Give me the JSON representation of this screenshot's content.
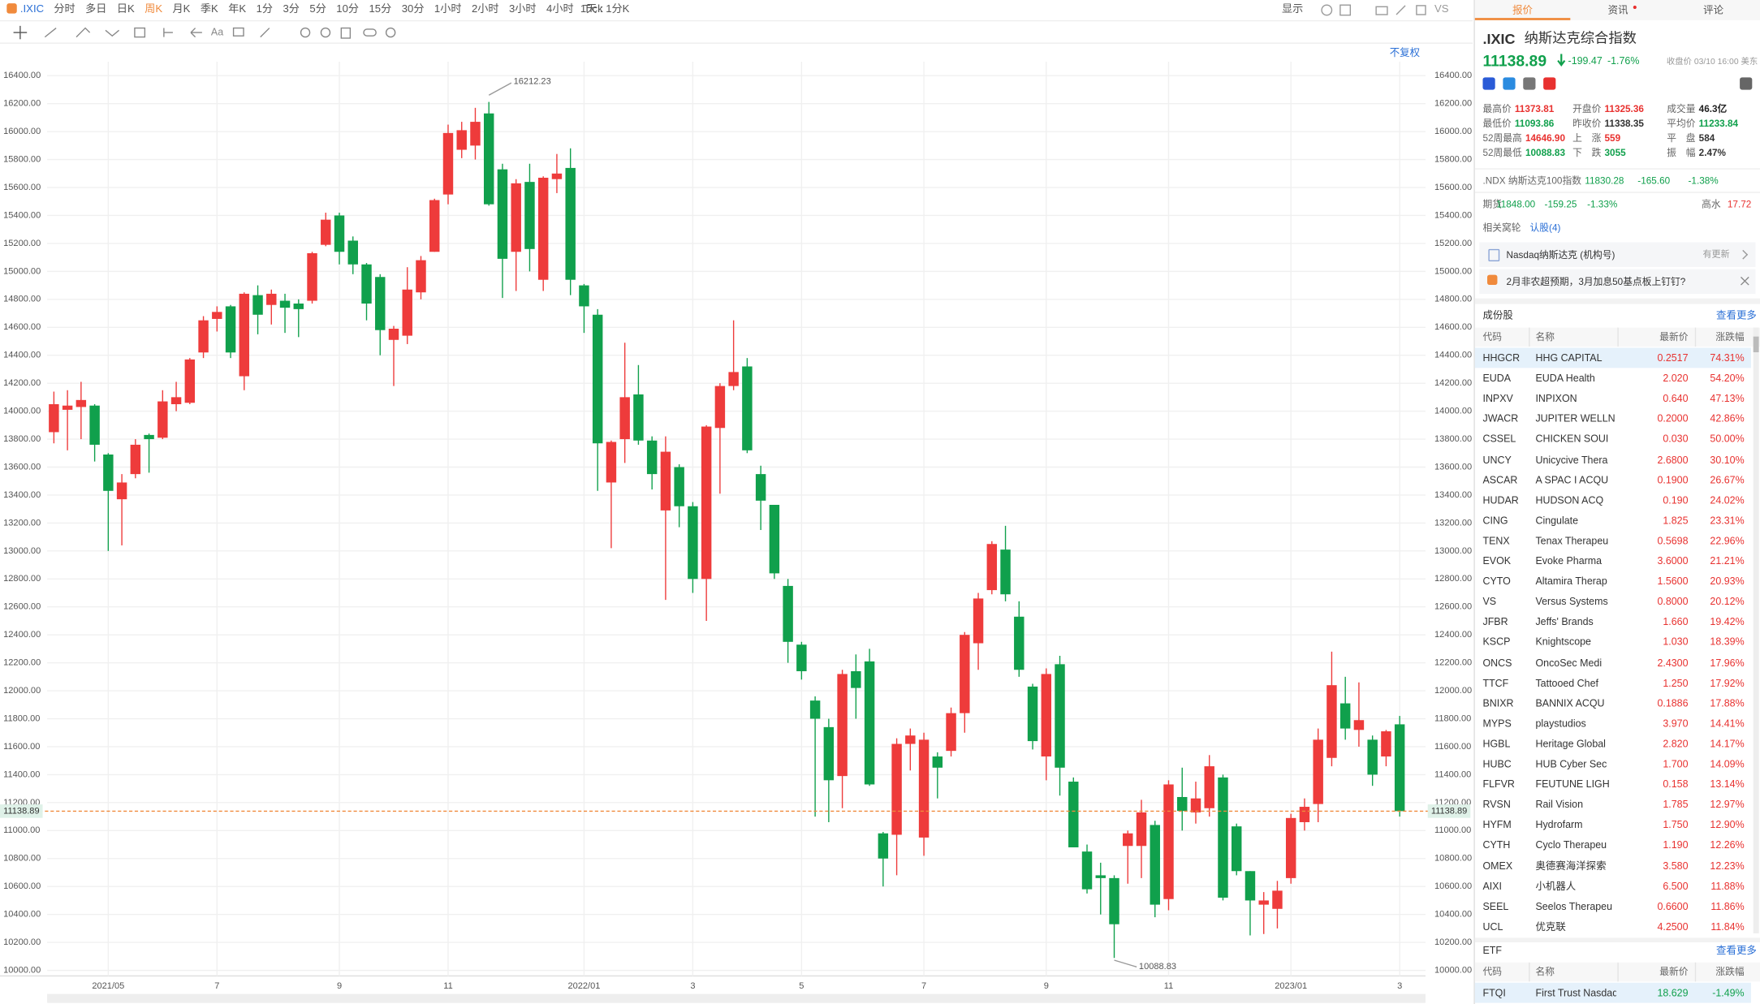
{
  "toolbar": {
    "symbol": ".IXIC",
    "periods": [
      "分时",
      "多日",
      "日K",
      "周K",
      "月K",
      "季K",
      "年K",
      "1分",
      "3分",
      "5分",
      "10分",
      "15分",
      "30分",
      "1小时",
      "2小时",
      "3小时",
      "4小时",
      "Tick"
    ],
    "active_period": 3,
    "kline_setting": "1天 : 1分K",
    "display": "显示",
    "vs": "VS",
    "adjust": "不复权"
  },
  "chart_data": {
    "type": "candlestick",
    "categories": [
      null,
      null,
      null,
      null,
      "2021/05",
      null,
      null,
      null,
      null,
      null,
      null,
      null,
      "7",
      null,
      null,
      null,
      null,
      null,
      null,
      null,
      null,
      "9",
      null,
      null,
      null,
      null,
      null,
      null,
      null,
      "11",
      null,
      null,
      null,
      null,
      null,
      null,
      null,
      null,
      null,
      "2022/01",
      null,
      null,
      null,
      null,
      null,
      null,
      null,
      "3",
      null,
      null,
      null,
      null,
      null,
      null,
      null,
      "5",
      null,
      null,
      null,
      null,
      null,
      null,
      null,
      null,
      "7",
      null,
      null,
      null,
      null,
      null,
      null,
      null,
      null,
      "9",
      null,
      null,
      null,
      null,
      null,
      null,
      null,
      null,
      "11",
      null,
      null,
      null,
      null,
      null,
      null,
      null,
      null,
      "2023/01",
      null,
      null,
      null,
      null,
      null,
      null,
      null,
      "3"
    ],
    "open": [
      13850,
      14010,
      14030,
      14040,
      13690,
      13370,
      13550,
      13830,
      13810,
      14050,
      14060,
      14420,
      14660,
      14750,
      14250,
      14830,
      14760,
      14790,
      14770,
      14790,
      15190,
      15400,
      15220,
      15050,
      14960,
      14510,
      14540,
      14850,
      15140,
      15550,
      15870,
      15900,
      16130,
      15730,
      15140,
      15640,
      14940,
      15660,
      15740,
      14900,
      14690,
      13490,
      13800,
      14120,
      13790,
      13290,
      13600,
      13320,
      12800,
      13880,
      14180,
      14320,
      13550,
      13330,
      12750,
      12330,
      11930,
      11740,
      11390,
      12140,
      12210,
      10980,
      10970,
      11620,
      10950,
      11530,
      11570,
      11840,
      12340,
      12720,
      13010,
      12530,
      12030,
      11530,
      12190,
      11350,
      10850,
      10680,
      10660,
      10890,
      10890,
      11040,
      10510,
      11240,
      11130,
      11160,
      11380,
      11030,
      10710,
      10470,
      10440,
      10660,
      11060,
      11190,
      11520,
      11910,
      11720,
      11650,
      11530,
      11760
    ],
    "high": [
      14140,
      14150,
      14210,
      14050,
      13700,
      13550,
      13800,
      13840,
      14150,
      14210,
      14380,
      14680,
      14750,
      14760,
      14850,
      14900,
      14870,
      14840,
      14800,
      15140,
      15420,
      15420,
      15250,
      15060,
      14980,
      14610,
      15030,
      15110,
      15520,
      16050,
      16070,
      16170,
      16212.23,
      15770,
      15660,
      15770,
      15680,
      15840,
      15880,
      14910,
      14730,
      13790,
      14490,
      14330,
      13820,
      13820,
      13620,
      13350,
      13900,
      14200,
      14650,
      14380,
      13610,
      13330,
      12800,
      12350,
      11960,
      11800,
      12150,
      12260,
      12300,
      10990,
      11660,
      11730,
      11700,
      11560,
      11880,
      12420,
      12700,
      13070,
      13180,
      12640,
      12050,
      12160,
      12250,
      11380,
      10900,
      10770,
      10680,
      11000,
      11220,
      11070,
      11360,
      11450,
      11350,
      11540,
      11400,
      11050,
      10710,
      10560,
      10640,
      11120,
      11230,
      11730,
      12280,
      12100,
      12060,
      11680,
      11720,
      11820
    ],
    "low": [
      13770,
      13720,
      13800,
      13640,
      13000,
      13040,
      13520,
      13560,
      13800,
      14000,
      14050,
      14380,
      14570,
      14380,
      14150,
      14550,
      14620,
      14560,
      14530,
      14770,
      15180,
      15050,
      14980,
      14650,
      14400,
      14180,
      14480,
      14800,
      15140,
      15480,
      15810,
      15800,
      15470,
      14810,
      14860,
      15000,
      14860,
      15560,
      14830,
      14560,
      13430,
      13020,
      13630,
      13760,
      13440,
      12650,
      13170,
      12700,
      12500,
      13410,
      14150,
      13700,
      13150,
      12800,
      12200,
      12080,
      11100,
      11060,
      11160,
      11800,
      11320,
      10600,
      10680,
      11430,
      10820,
      11230,
      11530,
      11700,
      12150,
      12690,
      12640,
      12100,
      11580,
      11360,
      11250,
      10880,
      10550,
      10400,
      10088.83,
      10620,
      10660,
      10380,
      10430,
      11000,
      11050,
      11100,
      10500,
      10680,
      10250,
      10260,
      10300,
      10620,
      11000,
      11060,
      11460,
      11650,
      11600,
      11320,
      11460,
      11100
    ],
    "close": [
      14050,
      14040,
      14080,
      13760,
      13430,
      13490,
      13760,
      13800,
      14070,
      14100,
      14370,
      14650,
      14710,
      14420,
      14840,
      14690,
      14840,
      14740,
      14730,
      15130,
      15370,
      15140,
      15050,
      14770,
      14580,
      14590,
      14870,
      15080,
      15510,
      15990,
      16010,
      16070,
      15480,
      15090,
      15630,
      15160,
      15670,
      15700,
      14940,
      14750,
      13770,
      13780,
      14100,
      13790,
      13550,
      13710,
      13320,
      12800,
      13890,
      14180,
      14280,
      13720,
      13360,
      12840,
      12350,
      12140,
      11800,
      11360,
      12120,
      12020,
      11330,
      10800,
      11620,
      11680,
      11650,
      11450,
      11840,
      12400,
      12660,
      13050,
      12690,
      12150,
      11640,
      12120,
      11450,
      10880,
      10580,
      10660,
      10330,
      10980,
      11130,
      10470,
      11330,
      11140,
      11230,
      11460,
      10520,
      10710,
      10500,
      10500,
      10570,
      11090,
      11170,
      11650,
      12040,
      11730,
      11790,
      11400,
      11710,
      11138.89
    ],
    "up_color": "#ee3b3b",
    "down_color": "#10a04c",
    "price_line_color": "#f08a3c",
    "grid": true,
    "ylim": [
      9960,
      16500
    ],
    "yticks": [
      {
        "value": 10000,
        "label": "10000.00"
      },
      {
        "value": 10200,
        "label": "10200.00"
      },
      {
        "value": 10400,
        "label": "10400.00"
      },
      {
        "value": 10600,
        "label": "10600.00"
      },
      {
        "value": 10800,
        "label": "10800.00"
      },
      {
        "value": 11000,
        "label": "11000.00"
      },
      {
        "value": 11200,
        "label": "11200.00"
      },
      {
        "value": 11400,
        "label": "11400.00"
      },
      {
        "value": 11600,
        "label": "11600.00"
      },
      {
        "value": 11800,
        "label": "11800.00"
      },
      {
        "value": 12000,
        "label": "12000.00"
      },
      {
        "value": 12200,
        "label": "12200.00"
      },
      {
        "value": 12400,
        "label": "12400.00"
      },
      {
        "value": 12600,
        "label": "12600.00"
      },
      {
        "value": 12800,
        "label": "12800.00"
      },
      {
        "value": 13000,
        "label": "13000.00"
      },
      {
        "value": 13200,
        "label": "13200.00"
      },
      {
        "value": 13400,
        "label": "13400.00"
      },
      {
        "value": 13600,
        "label": "13600.00"
      },
      {
        "value": 13800,
        "label": "13800.00"
      },
      {
        "value": 14000,
        "label": "14000.00"
      },
      {
        "value": 14200,
        "label": "14200.00"
      },
      {
        "value": 14400,
        "label": "14400.00"
      },
      {
        "value": 14600,
        "label": "14600.00"
      },
      {
        "value": 14800,
        "label": "14800.00"
      },
      {
        "value": 15000,
        "label": "15000.00"
      },
      {
        "value": 15200,
        "label": "15200.00"
      },
      {
        "value": 15400,
        "label": "15400.00"
      },
      {
        "value": 15600,
        "label": "15600.00"
      },
      {
        "value": 15800,
        "label": "15800.00"
      },
      {
        "value": 16000,
        "label": "16000.00"
      },
      {
        "value": 16200,
        "label": "16200.00"
      },
      {
        "value": 16400,
        "label": "16400.00"
      }
    ]
  },
  "quote": {
    "tabs": [
      "报价",
      "资讯",
      "评论"
    ],
    "symbol": ".IXIC",
    "name": "纳斯达克综合指数",
    "price": "11138.89",
    "change": "-199.47",
    "change_pct": "-1.76%",
    "close_time": "收盘价 03/10 16:00 美东",
    "stats": [
      [
        [
          "最高价",
          "11373.81"
        ],
        [
          "开盘价",
          "11325.36"
        ],
        [
          "成交量",
          "46.3亿"
        ]
      ],
      [
        [
          "最低价",
          "11093.86"
        ],
        [
          "昨收价",
          "11338.35"
        ],
        [
          "平均价",
          "11233.84"
        ]
      ],
      [
        [
          "52周最高",
          "14646.90"
        ],
        [
          "上　涨",
          "559"
        ],
        [
          "平　盘",
          "584"
        ]
      ],
      [
        [
          "52周最低",
          "10088.83"
        ],
        [
          "下　跌",
          "3055"
        ],
        [
          "振　幅",
          "2.47%"
        ]
      ]
    ],
    "ndx": {
      "name": ".NDX 纳斯达克100指数",
      "price": "11830.28",
      "change": "-165.60",
      "change_pct": "-1.38%"
    },
    "futures": {
      "label": "期货",
      "price": "11848.00",
      "change": "-159.25",
      "change_pct": "-1.33%",
      "tide_label": "高水",
      "tide": "17.72"
    },
    "related": {
      "label": "相关窝轮",
      "link": "认股(4)"
    },
    "account": {
      "name": "Nasdaq纳斯达克 (机构号)",
      "update": "有更新"
    },
    "news": "2月非农超预期，3月加息50基点板上钉钉?"
  },
  "constituents": {
    "title": "成份股",
    "more": "查看更多",
    "headers": [
      "代码",
      "名称",
      "最新价",
      "涨跌幅"
    ],
    "rows": [
      [
        "HHGCR",
        "HHG CAPITAL",
        "0.2517",
        "74.31%"
      ],
      [
        "EUDA",
        "EUDA Health",
        "2.020",
        "54.20%"
      ],
      [
        "INPXV",
        "INPIXON",
        "0.640",
        "47.13%"
      ],
      [
        "JWACR",
        "JUPITER WELLN",
        "0.2000",
        "42.86%"
      ],
      [
        "CSSEL",
        "CHICKEN SOUI",
        "0.030",
        "50.00%"
      ],
      [
        "UNCY",
        "Unicycive Thera",
        "2.6800",
        "30.10%"
      ],
      [
        "ASCAR",
        "A SPAC I ACQU",
        "0.1900",
        "26.67%"
      ],
      [
        "HUDAR",
        "HUDSON ACQ",
        "0.190",
        "24.02%"
      ],
      [
        "CING",
        "Cingulate",
        "1.825",
        "23.31%"
      ],
      [
        "TENX",
        "Tenax Therapeu",
        "0.5698",
        "22.96%"
      ],
      [
        "EVOK",
        "Evoke Pharma",
        "3.6000",
        "21.21%"
      ],
      [
        "CYTO",
        "Altamira Therap",
        "1.5600",
        "20.93%"
      ],
      [
        "VS",
        "Versus Systems",
        "0.8000",
        "20.12%"
      ],
      [
        "JFBR",
        "Jeffs' Brands",
        "1.660",
        "19.42%"
      ],
      [
        "KSCP",
        "Knightscope",
        "1.030",
        "18.39%"
      ],
      [
        "ONCS",
        "OncoSec Medi",
        "2.4300",
        "17.96%"
      ],
      [
        "TTCF",
        "Tattooed Chef",
        "1.250",
        "17.92%"
      ],
      [
        "BNIXR",
        "BANNIX ACQU",
        "0.1886",
        "17.88%"
      ],
      [
        "MYPS",
        "playstudios",
        "3.970",
        "14.41%"
      ],
      [
        "HGBL",
        "Heritage Global",
        "2.820",
        "14.17%"
      ],
      [
        "HUBC",
        "HUB Cyber Sec",
        "1.700",
        "14.09%"
      ],
      [
        "FLFVR",
        "FEUTUNE LIGH",
        "0.158",
        "13.14%"
      ],
      [
        "RVSN",
        "Rail Vision",
        "1.785",
        "12.97%"
      ],
      [
        "HYFM",
        "Hydrofarm",
        "1.750",
        "12.90%"
      ],
      [
        "CYTH",
        "Cyclo Therapeu",
        "1.190",
        "12.26%"
      ],
      [
        "OMEX",
        "奥德赛海洋探索",
        "3.580",
        "12.23%"
      ],
      [
        "AIXI",
        "小机器人",
        "6.500",
        "11.88%"
      ],
      [
        "SEEL",
        "Seelos Therapeu",
        "0.6600",
        "11.86%"
      ],
      [
        "UCL",
        "优克联",
        "4.2500",
        "11.84%"
      ]
    ]
  },
  "etf": {
    "title": "ETF",
    "more": "查看更多",
    "headers": [
      "代码",
      "名称",
      "最新价",
      "涨跌幅"
    ],
    "rows": [
      [
        "FTQI",
        "First Trust Nasdaq",
        "18.629",
        "-1.49%"
      ]
    ]
  }
}
